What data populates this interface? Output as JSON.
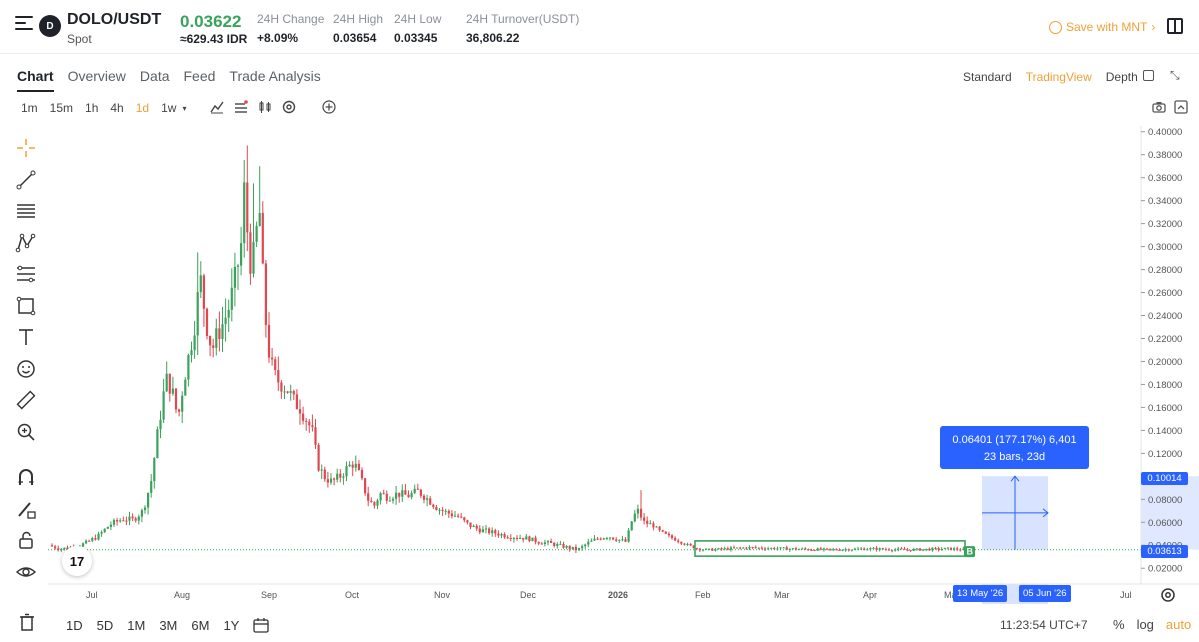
{
  "header": {
    "coin_logo_text": "D",
    "pair": "DOLO/USDT",
    "market_type": "Spot",
    "last_price": "0.03622",
    "fiat_price": "≈629.43 IDR",
    "stats": [
      {
        "label": "24H Change",
        "value": "+8.09%"
      },
      {
        "label": "24H High",
        "value": "0.03654"
      },
      {
        "label": "24H Low",
        "value": "0.03345"
      },
      {
        "label": "24H Turnover(USDT)",
        "value": "36,806.22"
      }
    ],
    "save_link": "Save with MNT",
    "save_chevron": "›"
  },
  "tabs": [
    "Chart",
    "Overview",
    "Data",
    "Feed",
    "Trade Analysis"
  ],
  "active_tab": "Chart",
  "views": [
    "Standard",
    "TradingView",
    "Depth"
  ],
  "active_view": "TradingView",
  "timeframes": [
    "1m",
    "15m",
    "1h",
    "4h",
    "1d",
    "1w"
  ],
  "active_timeframe": "1d",
  "timeframe_caret": "▾",
  "collapse_glyph": "⤡",
  "tv_logo": "17",
  "chart_data": {
    "type": "candlestick",
    "y_ticks": [
      "0.40000",
      "0.38000",
      "0.36000",
      "0.34000",
      "0.32000",
      "0.30000",
      "0.28000",
      "0.26000",
      "0.24000",
      "0.22000",
      "0.20000",
      "0.18000",
      "0.16000",
      "0.14000",
      "0.12000",
      "0.10000",
      "0.08000",
      "0.06000",
      "0.04000",
      "0.02000"
    ],
    "x_ticks": [
      "Jul",
      "Aug",
      "Sep",
      "Oct",
      "Nov",
      "Dec",
      "2026",
      "Feb",
      "Mar",
      "Apr",
      "Ma",
      "Jul"
    ],
    "ylim": [
      0.008,
      0.405
    ],
    "current_price_tag": "0.03613",
    "measure_price_tag": "0.10014",
    "measure_label_line1": "0.06401 (177.17%) 6,401",
    "measure_label_line2": "23 bars, 23d",
    "date_tag_start": "13 May '26",
    "date_tag_end": "05 Jun '26",
    "box_marker": "B",
    "up_color": "#3aa35b",
    "down_color": "#e0474f"
  },
  "bottom": {
    "ranges": [
      "1D",
      "5D",
      "1M",
      "3M",
      "6M",
      "1Y"
    ],
    "clock": "11:23:54 UTC+7",
    "scale_options": [
      "%",
      "log",
      "auto"
    ]
  }
}
